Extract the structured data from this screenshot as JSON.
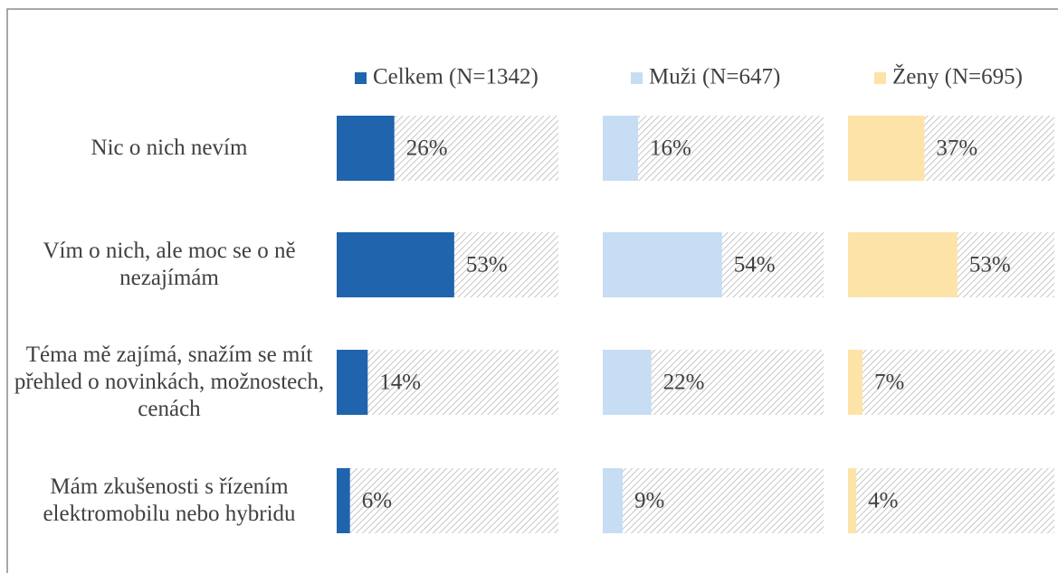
{
  "chart_data": {
    "type": "bar",
    "orientation": "horizontal",
    "categories": [
      "Nic o nich nevím",
      "Vím o nich, ale moc se o ně nezajímám",
      "Téma mě zajímá, snažím se mít přehled o novinkách, možnostech, cenách",
      "Mám zkušenosti s řízením elektromobilu nebo hybridu"
    ],
    "series": [
      {
        "name": "Celkem (N=1342)",
        "color": "#1f64ad",
        "values": [
          26,
          53,
          14,
          6
        ],
        "value_labels": [
          "26%",
          "53%",
          "14%",
          "6%"
        ]
      },
      {
        "name": "Muži (N=647)",
        "color": "#c6ddf3",
        "values": [
          16,
          54,
          22,
          9
        ],
        "value_labels": [
          "16%",
          "54%",
          "22%",
          "9%"
        ]
      },
      {
        "name": "Ženy (N=695)",
        "color": "#fde3a7",
        "values": [
          37,
          53,
          7,
          4
        ],
        "value_labels": [
          "37%",
          "53%",
          "7%",
          "4%"
        ]
      }
    ],
    "xlim": [
      0,
      100
    ],
    "legend": "top"
  }
}
